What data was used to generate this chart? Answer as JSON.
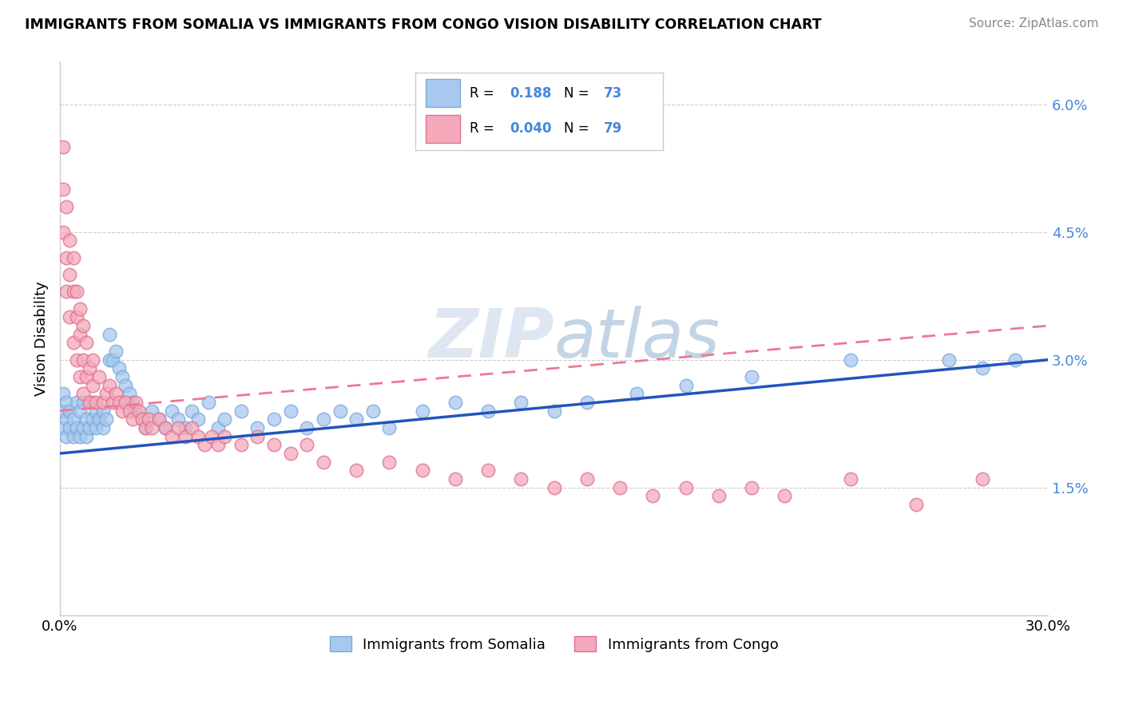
{
  "title": "IMMIGRANTS FROM SOMALIA VS IMMIGRANTS FROM CONGO VISION DISABILITY CORRELATION CHART",
  "source": "Source: ZipAtlas.com",
  "ylabel": "Vision Disability",
  "xlim": [
    0.0,
    0.3
  ],
  "ylim": [
    0.0,
    0.065
  ],
  "somalia_color": "#A8C8F0",
  "somalia_edge_color": "#7AAAD8",
  "congo_color": "#F4AABB",
  "congo_edge_color": "#E07090",
  "trend_somalia_color": "#2255BB",
  "trend_congo_color": "#EE7799",
  "somalia_R": 0.188,
  "somalia_N": 73,
  "congo_R": 0.04,
  "congo_N": 79,
  "watermark": "ZIPatlas",
  "legend_somalia": "Immigrants from Somalia",
  "legend_congo": "Immigrants from Congo",
  "label_color": "#4488DD",
  "somalia_scatter_x": [
    0.001,
    0.001,
    0.001,
    0.002,
    0.002,
    0.002,
    0.003,
    0.003,
    0.004,
    0.004,
    0.005,
    0.005,
    0.006,
    0.006,
    0.007,
    0.007,
    0.008,
    0.008,
    0.009,
    0.01,
    0.01,
    0.011,
    0.011,
    0.012,
    0.013,
    0.013,
    0.014,
    0.015,
    0.015,
    0.016,
    0.017,
    0.018,
    0.019,
    0.02,
    0.021,
    0.022,
    0.023,
    0.025,
    0.026,
    0.028,
    0.03,
    0.032,
    0.034,
    0.036,
    0.038,
    0.04,
    0.042,
    0.045,
    0.048,
    0.05,
    0.055,
    0.06,
    0.065,
    0.07,
    0.075,
    0.08,
    0.085,
    0.09,
    0.095,
    0.1,
    0.11,
    0.12,
    0.13,
    0.14,
    0.15,
    0.16,
    0.175,
    0.19,
    0.21,
    0.24,
    0.27,
    0.28,
    0.29
  ],
  "somalia_scatter_y": [
    0.022,
    0.024,
    0.026,
    0.021,
    0.023,
    0.025,
    0.022,
    0.024,
    0.021,
    0.023,
    0.022,
    0.025,
    0.021,
    0.024,
    0.022,
    0.025,
    0.021,
    0.023,
    0.022,
    0.023,
    0.025,
    0.022,
    0.024,
    0.023,
    0.022,
    0.024,
    0.023,
    0.03,
    0.033,
    0.03,
    0.031,
    0.029,
    0.028,
    0.027,
    0.026,
    0.025,
    0.024,
    0.023,
    0.022,
    0.024,
    0.023,
    0.022,
    0.024,
    0.023,
    0.022,
    0.024,
    0.023,
    0.025,
    0.022,
    0.023,
    0.024,
    0.022,
    0.023,
    0.024,
    0.022,
    0.023,
    0.024,
    0.023,
    0.024,
    0.022,
    0.024,
    0.025,
    0.024,
    0.025,
    0.024,
    0.025,
    0.026,
    0.027,
    0.028,
    0.03,
    0.03,
    0.029,
    0.03
  ],
  "congo_scatter_x": [
    0.001,
    0.001,
    0.001,
    0.002,
    0.002,
    0.002,
    0.003,
    0.003,
    0.003,
    0.004,
    0.004,
    0.004,
    0.005,
    0.005,
    0.005,
    0.006,
    0.006,
    0.006,
    0.007,
    0.007,
    0.007,
    0.008,
    0.008,
    0.009,
    0.009,
    0.01,
    0.01,
    0.011,
    0.012,
    0.013,
    0.014,
    0.015,
    0.016,
    0.017,
    0.018,
    0.019,
    0.02,
    0.021,
    0.022,
    0.023,
    0.024,
    0.025,
    0.026,
    0.027,
    0.028,
    0.03,
    0.032,
    0.034,
    0.036,
    0.038,
    0.04,
    0.042,
    0.044,
    0.046,
    0.048,
    0.05,
    0.055,
    0.06,
    0.065,
    0.07,
    0.075,
    0.08,
    0.09,
    0.1,
    0.11,
    0.12,
    0.13,
    0.14,
    0.15,
    0.16,
    0.17,
    0.18,
    0.19,
    0.2,
    0.21,
    0.22,
    0.24,
    0.26,
    0.28
  ],
  "congo_scatter_y": [
    0.05,
    0.055,
    0.045,
    0.042,
    0.048,
    0.038,
    0.04,
    0.044,
    0.035,
    0.038,
    0.042,
    0.032,
    0.035,
    0.038,
    0.03,
    0.033,
    0.036,
    0.028,
    0.03,
    0.034,
    0.026,
    0.028,
    0.032,
    0.025,
    0.029,
    0.027,
    0.03,
    0.025,
    0.028,
    0.025,
    0.026,
    0.027,
    0.025,
    0.026,
    0.025,
    0.024,
    0.025,
    0.024,
    0.023,
    0.025,
    0.024,
    0.023,
    0.022,
    0.023,
    0.022,
    0.023,
    0.022,
    0.021,
    0.022,
    0.021,
    0.022,
    0.021,
    0.02,
    0.021,
    0.02,
    0.021,
    0.02,
    0.021,
    0.02,
    0.019,
    0.02,
    0.018,
    0.017,
    0.018,
    0.017,
    0.016,
    0.017,
    0.016,
    0.015,
    0.016,
    0.015,
    0.014,
    0.015,
    0.014,
    0.015,
    0.014,
    0.016,
    0.013,
    0.016
  ]
}
